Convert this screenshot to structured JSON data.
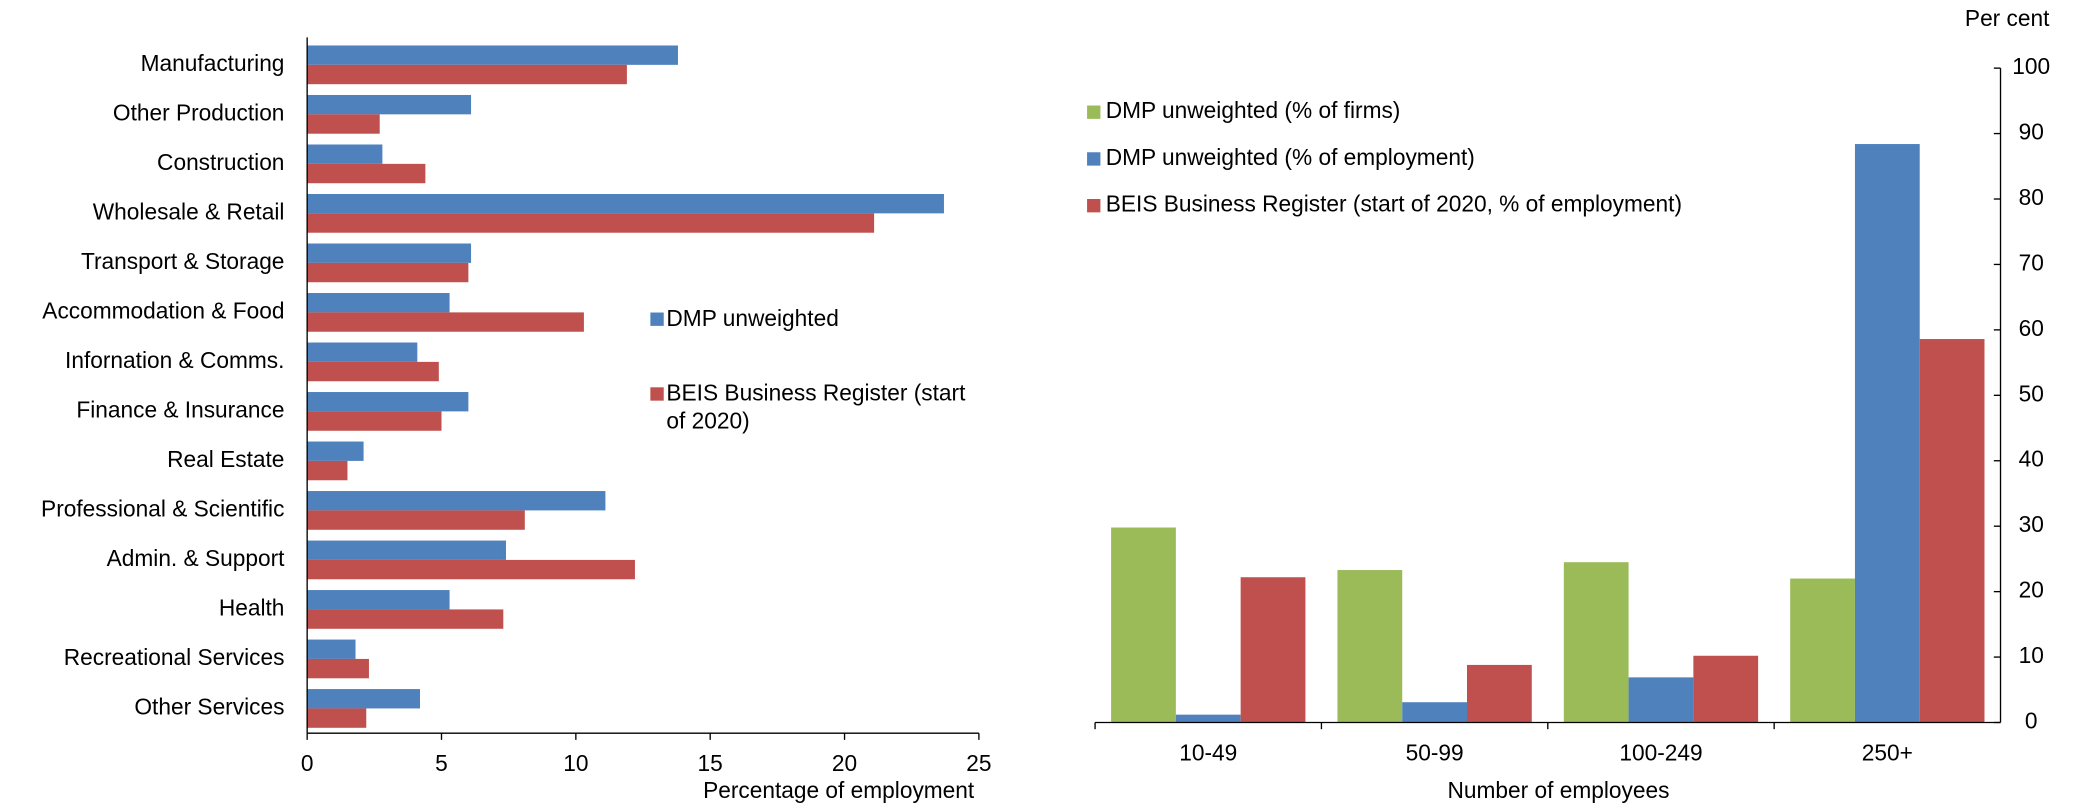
{
  "chart_data": [
    {
      "type": "hbar",
      "x_label": "Percentage of employment",
      "categories": [
        "Manufacturing",
        "Other Production",
        "Construction",
        "Wholesale & Retail",
        "Transport & Storage",
        "Accommodation & Food",
        "Infornation & Comms.",
        "Finance & Insurance",
        "Real Estate",
        "Professional & Scientific",
        "Admin. & Support",
        "Health",
        "Recreational Services",
        "Other Services"
      ],
      "series": [
        {
          "name": "DMP unweighted",
          "color": "#4f81bd",
          "values": [
            13.8,
            6.1,
            2.8,
            23.7,
            6.1,
            5.3,
            4.1,
            6.0,
            2.1,
            11.1,
            7.4,
            5.3,
            1.8,
            4.2
          ]
        },
        {
          "name": "BEIS Business Register (start of 2020)",
          "color": "#c0504d",
          "values": [
            11.9,
            2.7,
            4.4,
            21.1,
            6.0,
            10.3,
            4.9,
            5.0,
            1.5,
            8.1,
            12.2,
            7.3,
            2.3,
            2.2
          ]
        }
      ],
      "xlim": [
        0,
        25
      ],
      "xticks": [
        0,
        5,
        10,
        15,
        20,
        25
      ]
    },
    {
      "type": "bar",
      "x_label": "Number of employees",
      "y_label": "Per cent",
      "categories": [
        "10-49",
        "50-99",
        "100-249",
        "250+"
      ],
      "series": [
        {
          "name": "DMP unweighted (% of firms)",
          "color": "#9bbb59",
          "values": [
            29.8,
            23.3,
            24.5,
            22.0
          ]
        },
        {
          "name": "DMP unweighted (% of employment)",
          "color": "#4f81bd",
          "values": [
            1.2,
            3.1,
            6.9,
            88.4
          ]
        },
        {
          "name": "BEIS Business Register (start of 2020, % of employment)",
          "color": "#c0504d",
          "values": [
            22.2,
            8.8,
            10.2,
            58.6
          ]
        }
      ],
      "ylim": [
        0,
        100
      ],
      "yticks": [
        0,
        10,
        20,
        30,
        40,
        50,
        60,
        70,
        80,
        90,
        100
      ]
    }
  ]
}
